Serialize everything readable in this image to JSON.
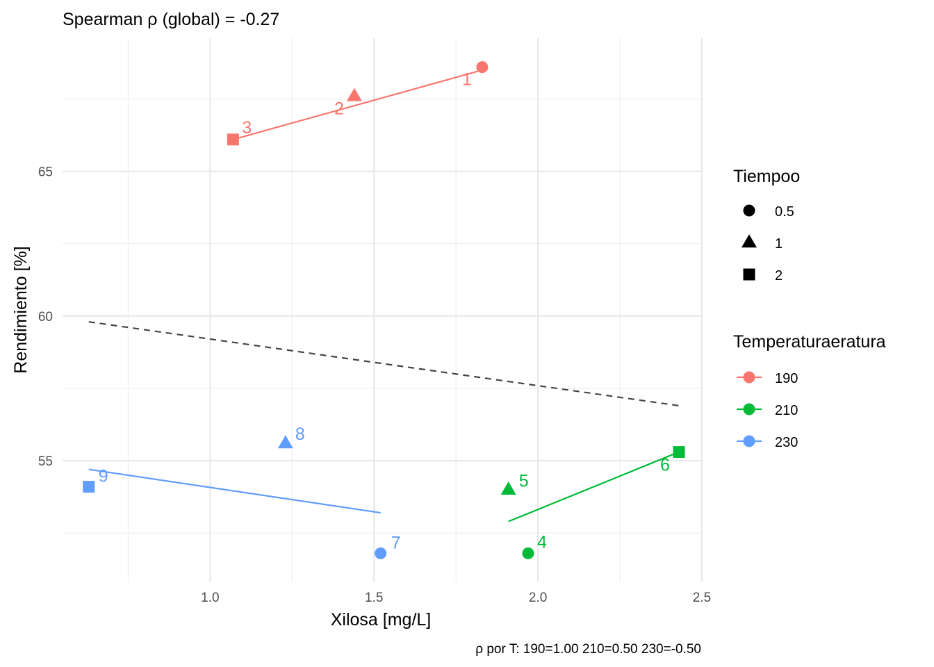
{
  "chart_data": {
    "type": "scatter",
    "title": "Spearman ρ (global) = -0.27",
    "xlabel": "Xilosa [mg/L]",
    "ylabel": "Rendimiento [%]",
    "caption": "ρ por T: 190=1.00   210=0.50   230=-0.50",
    "xlim": [
      0.55,
      2.5
    ],
    "ylim": [
      50.8,
      69.6
    ],
    "x_ticks": [
      1.0,
      1.5,
      2.0,
      2.5
    ],
    "x_tick_labels": [
      "1.0",
      "1.5",
      "2.0",
      "2.5"
    ],
    "y_ticks": [
      55,
      60,
      65
    ],
    "y_tick_labels": [
      "55",
      "60",
      "65"
    ],
    "grid": true,
    "legend_position": "right",
    "legend_shape": {
      "title": "Tiempoo",
      "items": [
        {
          "label": "0.5",
          "shape": "circle"
        },
        {
          "label": "1",
          "shape": "triangle"
        },
        {
          "label": "2",
          "shape": "square"
        }
      ]
    },
    "legend_color": {
      "title": "Temperaturaeratura",
      "items": [
        {
          "label": "190",
          "color": "#F8766D"
        },
        {
          "label": "210",
          "color": "#00BA38"
        },
        {
          "label": "230",
          "color": "#619CFF"
        }
      ]
    },
    "points": [
      {
        "label": "1",
        "x": 1.83,
        "y": 68.6,
        "group": "190",
        "shape": "circle"
      },
      {
        "label": "2",
        "x": 1.44,
        "y": 67.6,
        "group": "190",
        "shape": "triangle"
      },
      {
        "label": "3",
        "x": 1.07,
        "y": 66.1,
        "group": "190",
        "shape": "square"
      },
      {
        "label": "4",
        "x": 1.97,
        "y": 51.8,
        "group": "210",
        "shape": "circle"
      },
      {
        "label": "5",
        "x": 1.91,
        "y": 54.0,
        "group": "210",
        "shape": "triangle"
      },
      {
        "label": "6",
        "x": 2.43,
        "y": 55.3,
        "group": "210",
        "shape": "square"
      },
      {
        "label": "7",
        "x": 1.52,
        "y": 51.8,
        "group": "230",
        "shape": "circle"
      },
      {
        "label": "8",
        "x": 1.23,
        "y": 55.6,
        "group": "230",
        "shape": "triangle"
      },
      {
        "label": "9",
        "x": 0.63,
        "y": 54.1,
        "group": "230",
        "shape": "square"
      }
    ],
    "fit_lines": [
      {
        "group": "190",
        "x": [
          1.07,
          1.83
        ],
        "y": [
          66.1,
          68.5
        ]
      },
      {
        "group": "210",
        "x": [
          1.91,
          2.43
        ],
        "y": [
          52.9,
          55.3
        ]
      },
      {
        "group": "230",
        "x": [
          0.63,
          1.52
        ],
        "y": [
          54.7,
          53.2
        ]
      },
      {
        "group": "global",
        "x": [
          0.63,
          2.43
        ],
        "y": [
          59.8,
          56.9
        ],
        "dashed": true,
        "color": "#444444"
      }
    ]
  }
}
